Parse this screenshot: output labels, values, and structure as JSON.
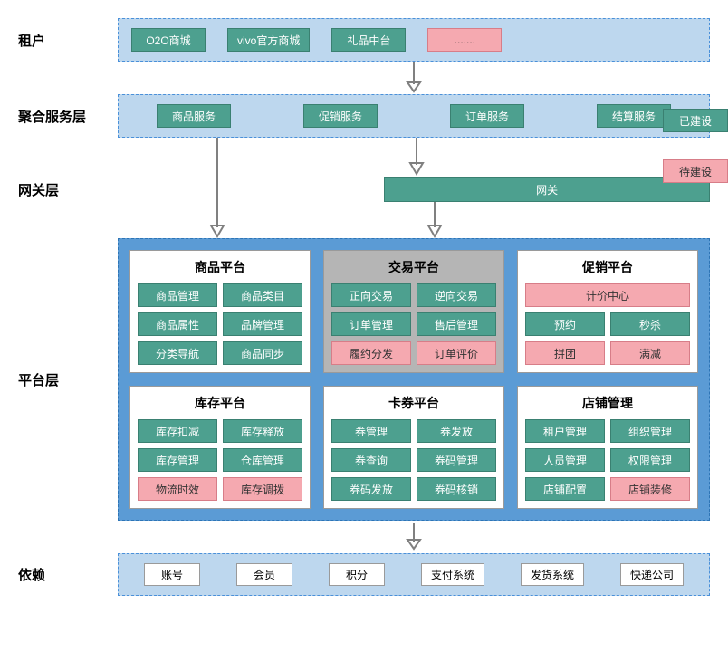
{
  "colors": {
    "built": "#4da08f",
    "built_text": "#ffffff",
    "pending": "#f5a9b0",
    "pending_text": "#333333",
    "container_bg": "#bdd7ee",
    "container_border": "#4a90d9",
    "platform_bg": "#5b9bd5",
    "platform_border": "#2e75b6",
    "gray_card": "#b5b5b5",
    "arrow": "#808080"
  },
  "legend": {
    "built": "已建设",
    "pending": "待建设"
  },
  "layers": {
    "tenant": {
      "label": "租户",
      "items": [
        {
          "text": "O2O商城",
          "status": "built"
        },
        {
          "text": "vivo官方商城",
          "status": "built"
        },
        {
          "text": "礼品中台",
          "status": "built"
        },
        {
          "text": ".......",
          "status": "pending"
        }
      ]
    },
    "aggregate": {
      "label": "聚合服务层",
      "items": [
        {
          "text": "商品服务",
          "status": "built"
        },
        {
          "text": "促销服务",
          "status": "built"
        },
        {
          "text": "订单服务",
          "status": "built"
        },
        {
          "text": "结算服务",
          "status": "built"
        }
      ]
    },
    "gateway": {
      "label": "网关层",
      "box": {
        "text": "网关",
        "status": "built"
      }
    },
    "platform": {
      "label": "平台层",
      "cards": [
        {
          "title": "商品平台",
          "highlight": false,
          "items": [
            {
              "text": "商品管理",
              "status": "built"
            },
            {
              "text": "商品类目",
              "status": "built"
            },
            {
              "text": "商品属性",
              "status": "built"
            },
            {
              "text": "品牌管理",
              "status": "built"
            },
            {
              "text": "分类导航",
              "status": "built"
            },
            {
              "text": "商品同步",
              "status": "built"
            }
          ]
        },
        {
          "title": "交易平台",
          "highlight": true,
          "items": [
            {
              "text": "正向交易",
              "status": "built"
            },
            {
              "text": "逆向交易",
              "status": "built"
            },
            {
              "text": "订单管理",
              "status": "built"
            },
            {
              "text": "售后管理",
              "status": "built"
            },
            {
              "text": "履约分发",
              "status": "pending"
            },
            {
              "text": "订单评价",
              "status": "pending"
            }
          ]
        },
        {
          "title": "促销平台",
          "highlight": false,
          "items": [
            {
              "text": "计价中心",
              "status": "pending",
              "wide": true
            },
            {
              "text": "预约",
              "status": "built"
            },
            {
              "text": "秒杀",
              "status": "built"
            },
            {
              "text": "拼团",
              "status": "pending"
            },
            {
              "text": "满减",
              "status": "pending"
            }
          ]
        },
        {
          "title": "库存平台",
          "highlight": false,
          "items": [
            {
              "text": "库存扣减",
              "status": "built"
            },
            {
              "text": "库存释放",
              "status": "built"
            },
            {
              "text": "库存管理",
              "status": "built"
            },
            {
              "text": "仓库管理",
              "status": "built"
            },
            {
              "text": "物流时效",
              "status": "pending"
            },
            {
              "text": "库存调拨",
              "status": "pending"
            }
          ]
        },
        {
          "title": "卡券平台",
          "highlight": false,
          "items": [
            {
              "text": "券管理",
              "status": "built"
            },
            {
              "text": "券发放",
              "status": "built"
            },
            {
              "text": "券查询",
              "status": "built"
            },
            {
              "text": "券码管理",
              "status": "built"
            },
            {
              "text": "券码发放",
              "status": "built"
            },
            {
              "text": "券码核销",
              "status": "built"
            }
          ]
        },
        {
          "title": "店铺管理",
          "highlight": false,
          "items": [
            {
              "text": "租户管理",
              "status": "built"
            },
            {
              "text": "组织管理",
              "status": "built"
            },
            {
              "text": "人员管理",
              "status": "built"
            },
            {
              "text": "权限管理",
              "status": "built"
            },
            {
              "text": "店铺配置",
              "status": "built"
            },
            {
              "text": "店铺装修",
              "status": "pending"
            }
          ]
        }
      ]
    },
    "dependency": {
      "label": "依赖",
      "items": [
        "账号",
        "会员",
        "积分",
        "支付系统",
        "发货系统",
        "快递公司"
      ]
    }
  }
}
